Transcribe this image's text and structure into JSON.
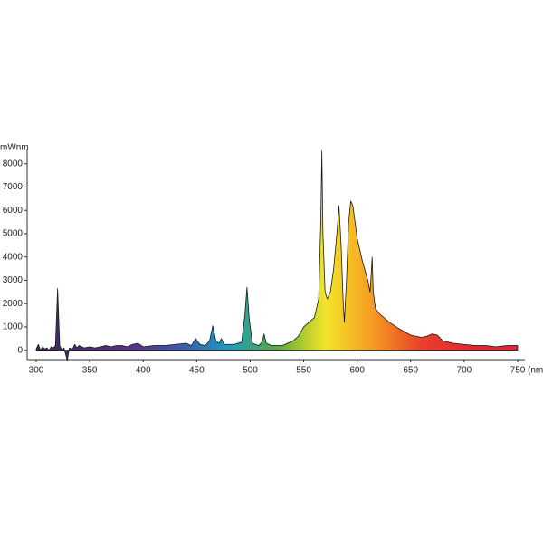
{
  "chart_data": {
    "type": "area",
    "y_label": "mWnm",
    "x_label": "(nm)",
    "x": [
      300,
      302,
      304,
      306,
      308,
      310,
      312,
      314,
      316,
      318,
      320,
      322,
      324,
      326,
      329,
      331,
      334,
      336,
      338,
      340,
      345,
      350,
      355,
      360,
      365,
      370,
      375,
      380,
      385,
      390,
      395,
      400,
      410,
      420,
      430,
      440,
      445,
      449,
      453,
      458,
      462,
      465,
      468,
      471,
      473,
      476,
      485,
      492,
      495,
      497,
      499,
      502,
      508,
      511,
      513,
      515,
      520,
      530,
      540,
      545,
      550,
      555,
      560,
      564,
      566,
      567,
      568,
      570,
      572,
      575,
      578,
      581,
      583,
      585,
      587,
      588,
      590,
      592,
      594,
      596,
      600,
      605,
      610,
      612,
      613,
      614,
      615,
      617,
      620,
      630,
      640,
      650,
      660,
      665,
      670,
      675,
      680,
      690,
      700,
      710,
      720,
      730,
      740,
      750
    ],
    "y": [
      50,
      250,
      0,
      150,
      50,
      100,
      0,
      150,
      100,
      200,
      2650,
      200,
      0,
      100,
      -450,
      100,
      50,
      250,
      100,
      200,
      100,
      150,
      100,
      150,
      200,
      150,
      200,
      200,
      150,
      250,
      300,
      150,
      200,
      200,
      250,
      300,
      200,
      500,
      250,
      200,
      400,
      1050,
      400,
      300,
      500,
      250,
      250,
      350,
      1500,
      2700,
      1400,
      300,
      200,
      350,
      700,
      300,
      200,
      200,
      400,
      600,
      1000,
      1200,
      1400,
      2200,
      5500,
      8550,
      5000,
      2500,
      2200,
      2500,
      3500,
      5000,
      6200,
      4500,
      2000,
      1200,
      3000,
      5500,
      6400,
      6200,
      4800,
      3800,
      3000,
      2500,
      3200,
      4000,
      2500,
      1800,
      1600,
      1200,
      900,
      650,
      550,
      600,
      700,
      650,
      400,
      300,
      250,
      200,
      200,
      150,
      200,
      200
    ],
    "colors": [
      "#3e2a5e",
      "#4a2b74",
      "#58308a",
      "#3b5aa8",
      "#1e9bc0",
      "#5aaa3c",
      "#f3e52a",
      "#f59a22",
      "#e9402a",
      "#e32a2e",
      "#df2630"
    ],
    "xlim": [
      300,
      750
    ],
    "ylim": [
      -400,
      9000
    ],
    "xticks": [
      300,
      350,
      400,
      450,
      500,
      550,
      600,
      650,
      700,
      750
    ],
    "yticks": [
      0,
      1000,
      2000,
      3000,
      4000,
      5000,
      6000,
      7000,
      8000
    ]
  }
}
